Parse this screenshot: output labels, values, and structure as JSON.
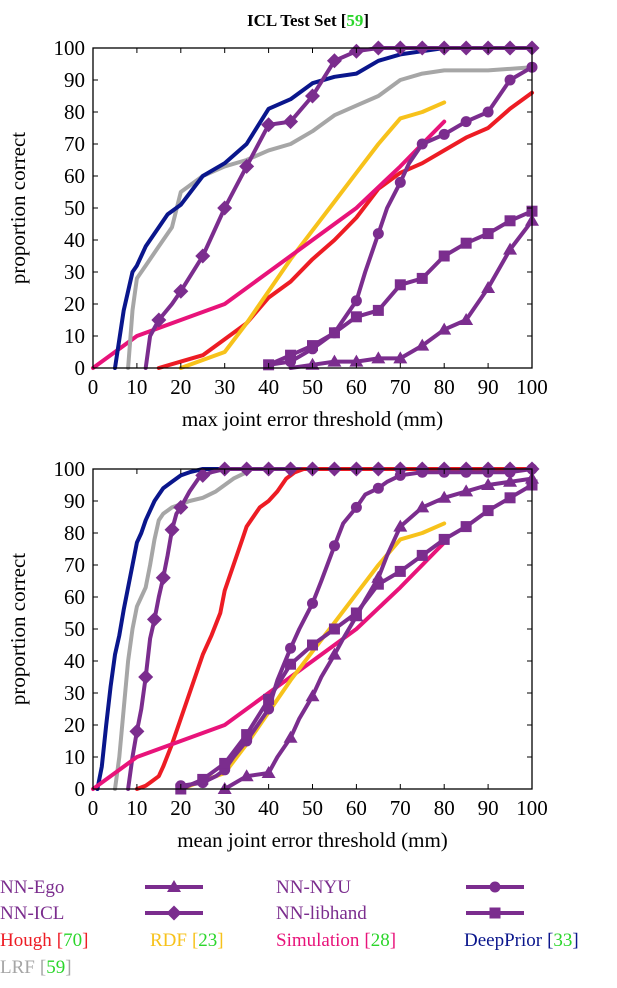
{
  "title": {
    "main": "ICL Test Set",
    "open": "[",
    "ref": "59",
    "close": "]"
  },
  "colors": {
    "NN-Ego": "#7b2d8e",
    "NN-ICL": "#7b2d8e",
    "NN-NYU": "#7b2d8e",
    "NN-libhand": "#7b2d8e",
    "Hough": "#ed1c24",
    "RDF": "#f7c21b",
    "Simulation": "#e8137a",
    "DeepPrior": "#0a168c",
    "LRF": "#a6a6a6",
    "ref": "#2bd62b"
  },
  "legend": [
    {
      "key": "NN-Ego",
      "label": "NN-Ego",
      "marker": "triangle"
    },
    {
      "key": "NN-NYU",
      "label": "NN-NYU",
      "marker": "circle"
    },
    {
      "key": "NN-ICL",
      "label": "NN-ICL",
      "marker": "diamond"
    },
    {
      "key": "NN-libhand",
      "label": "NN-libhand",
      "marker": "square"
    },
    {
      "key": "Hough",
      "label": "Hough",
      "ref": "70"
    },
    {
      "key": "RDF",
      "label": "RDF",
      "ref": "23"
    },
    {
      "key": "Simulation",
      "label": "Simulation",
      "ref": "28"
    },
    {
      "key": "DeepPrior",
      "label": "DeepPrior",
      "ref": "33"
    },
    {
      "key": "LRF",
      "label": "LRF",
      "ref": "59"
    }
  ],
  "chart_data": [
    {
      "type": "line",
      "xlabel": "max joint error threshold (mm)",
      "ylabel": "proportion correct",
      "xlim": [
        0,
        100
      ],
      "ylim": [
        0,
        100
      ],
      "xticks": [
        0,
        10,
        20,
        30,
        40,
        50,
        60,
        70,
        80,
        90,
        100
      ],
      "yticks": [
        0,
        10,
        20,
        30,
        40,
        50,
        60,
        70,
        80,
        90,
        100
      ],
      "series": [
        {
          "key": "Hough",
          "x": [
            15,
            20,
            25,
            30,
            35,
            40,
            45,
            50,
            55,
            60,
            65,
            70,
            75,
            80,
            85,
            90,
            95,
            100
          ],
          "y": [
            0,
            2,
            4,
            9,
            14,
            22,
            27,
            34,
            40,
            47,
            56,
            61,
            64,
            68,
            72,
            75,
            81,
            86
          ]
        },
        {
          "key": "RDF",
          "x": [
            20,
            30,
            35,
            40,
            45,
            50,
            55,
            60,
            65,
            70,
            75,
            80
          ],
          "y": [
            0,
            5,
            14,
            24,
            34,
            43,
            52,
            61,
            70,
            78,
            80,
            83
          ]
        },
        {
          "key": "Simulation",
          "x": [
            0,
            10,
            20,
            30,
            40,
            50,
            60,
            70,
            80
          ],
          "y": [
            0,
            10,
            15,
            20,
            30,
            40,
            50,
            63,
            77
          ]
        },
        {
          "key": "LRF",
          "x": [
            8,
            9,
            10,
            12,
            15,
            18,
            20,
            25,
            30,
            35,
            40,
            45,
            50,
            55,
            60,
            65,
            70,
            75,
            80,
            90,
            100
          ],
          "y": [
            0,
            18,
            28,
            32,
            38,
            44,
            55,
            60,
            63,
            65,
            68,
            70,
            74,
            79,
            82,
            85,
            90,
            92,
            93,
            93,
            94
          ]
        },
        {
          "key": "DeepPrior",
          "x": [
            5,
            7,
            9,
            10,
            12,
            15,
            17,
            20,
            25,
            30,
            35,
            40,
            45,
            50,
            55,
            60,
            65,
            70,
            75,
            80,
            100
          ],
          "y": [
            0,
            18,
            30,
            32,
            38,
            44,
            48,
            51,
            60,
            64,
            70,
            81,
            84,
            89,
            91,
            92,
            96,
            98,
            99,
            100,
            100
          ]
        },
        {
          "key": "NN-ICL",
          "x": [
            12,
            13,
            15,
            18,
            20,
            25,
            30,
            35,
            40,
            45,
            50,
            55,
            60,
            65,
            70,
            75,
            80,
            85,
            90,
            95,
            100
          ],
          "y": [
            0,
            10,
            15,
            20,
            24,
            35,
            50,
            63,
            76,
            77,
            85,
            96,
            99,
            100,
            100,
            100,
            100,
            100,
            100,
            100,
            100
          ]
        },
        {
          "key": "NN-NYU",
          "x": [
            40,
            45,
            50,
            55,
            60,
            62,
            65,
            67,
            70,
            72,
            75,
            80,
            85,
            90,
            95,
            100
          ],
          "y": [
            1,
            2,
            6,
            11,
            21,
            30,
            42,
            50,
            58,
            64,
            70,
            73,
            77,
            80,
            90,
            94
          ]
        },
        {
          "key": "NN-libhand",
          "x": [
            40,
            45,
            50,
            55,
            60,
            65,
            70,
            75,
            80,
            85,
            90,
            95,
            100
          ],
          "y": [
            1,
            4,
            7,
            11,
            16,
            18,
            26,
            28,
            35,
            39,
            42,
            46,
            49
          ]
        },
        {
          "key": "NN-Ego",
          "x": [
            45,
            50,
            55,
            60,
            65,
            70,
            75,
            80,
            85,
            90,
            95,
            100
          ],
          "y": [
            0,
            1,
            2,
            2,
            3,
            3,
            7,
            12,
            15,
            25,
            37,
            46
          ]
        }
      ],
      "markers": {
        "NN-ICL": [
          15,
          20,
          25,
          30,
          35,
          40,
          45,
          50,
          55,
          60,
          65,
          70,
          75,
          80,
          85,
          90,
          95,
          100
        ],
        "NN-NYU": [
          45,
          50,
          55,
          60,
          65,
          70,
          75,
          80,
          85,
          90,
          95,
          100
        ],
        "NN-libhand": [
          40,
          45,
          50,
          55,
          60,
          65,
          70,
          75,
          80,
          85,
          90,
          95,
          100
        ],
        "NN-Ego": [
          50,
          55,
          60,
          65,
          70,
          75,
          80,
          85,
          90,
          95,
          100
        ]
      }
    },
    {
      "type": "line",
      "xlabel": "mean joint error threshold (mm)",
      "ylabel": "proportion correct",
      "xlim": [
        0,
        100
      ],
      "ylim": [
        0,
        100
      ],
      "xticks": [
        0,
        10,
        20,
        30,
        40,
        50,
        60,
        70,
        80,
        90,
        100
      ],
      "yticks": [
        0,
        10,
        20,
        30,
        40,
        50,
        60,
        70,
        80,
        90,
        100
      ],
      "series": [
        {
          "key": "DeepPrior",
          "x": [
            1,
            2,
            3,
            4,
            5,
            6,
            7,
            8,
            9,
            10,
            11,
            12,
            13,
            14,
            15,
            16,
            18,
            20,
            22,
            25,
            30,
            100
          ],
          "y": [
            0,
            7,
            20,
            32,
            42,
            48,
            56,
            63,
            70,
            77,
            80,
            84,
            87,
            90,
            92,
            94,
            96,
            98,
            99,
            100,
            100,
            100
          ]
        },
        {
          "key": "LRF",
          "x": [
            5,
            6,
            7,
            8,
            9,
            10,
            11,
            12,
            13,
            14,
            15,
            16,
            18,
            20,
            22,
            25,
            28,
            30,
            32,
            35
          ],
          "y": [
            0,
            10,
            25,
            40,
            50,
            57,
            60,
            63,
            70,
            78,
            84,
            86,
            88,
            89,
            90,
            91,
            93,
            95,
            97,
            99
          ]
        },
        {
          "key": "NN-ICL",
          "x": [
            8,
            9,
            10,
            11,
            12,
            13,
            14,
            15,
            16,
            17,
            18,
            19,
            20,
            22,
            24,
            25,
            27,
            30,
            100
          ],
          "y": [
            0,
            10,
            18,
            25,
            35,
            47,
            53,
            60,
            66,
            73,
            81,
            86,
            88,
            93,
            97,
            98,
            99,
            100,
            100
          ]
        },
        {
          "key": "Hough",
          "x": [
            10,
            12,
            13,
            15,
            16,
            18,
            20,
            22,
            24,
            25,
            27,
            29,
            30,
            32,
            34,
            35,
            37,
            38,
            40,
            42,
            44,
            45,
            46,
            48,
            50,
            100
          ],
          "y": [
            0,
            1,
            2,
            4,
            7,
            14,
            22,
            30,
            38,
            42,
            48,
            55,
            62,
            70,
            78,
            82,
            86,
            88,
            90,
            93,
            97,
            98,
            99,
            100,
            100,
            100
          ]
        },
        {
          "key": "Simulation",
          "x": [
            0,
            10,
            20,
            30,
            40,
            50,
            60,
            70,
            80
          ],
          "y": [
            0,
            10,
            15,
            20,
            30,
            40,
            50,
            63,
            77
          ]
        },
        {
          "key": "RDF",
          "x": [
            20,
            30,
            35,
            40,
            45,
            50,
            55,
            60,
            65,
            70,
            75,
            80
          ],
          "y": [
            0,
            5,
            14,
            24,
            34,
            43,
            52,
            61,
            70,
            78,
            80,
            83
          ]
        },
        {
          "key": "NN-NYU",
          "x": [
            20,
            25,
            28,
            30,
            32,
            35,
            37,
            40,
            42,
            45,
            47,
            50,
            52,
            55,
            57,
            60,
            62,
            65,
            67,
            70,
            75,
            80,
            85,
            90,
            95,
            100
          ],
          "y": [
            1,
            2,
            4,
            6,
            10,
            15,
            19,
            25,
            34,
            44,
            50,
            58,
            65,
            76,
            83,
            88,
            92,
            94,
            96,
            98,
            99,
            99,
            99,
            99,
            99,
            100
          ]
        },
        {
          "key": "NN-libhand",
          "x": [
            20,
            25,
            30,
            35,
            40,
            45,
            50,
            55,
            60,
            65,
            70,
            75,
            80,
            85,
            90,
            95,
            100
          ],
          "y": [
            0,
            3,
            8,
            17,
            28,
            39,
            45,
            50,
            55,
            64,
            68,
            73,
            78,
            82,
            87,
            91,
            95
          ]
        },
        {
          "key": "NN-Ego",
          "x": [
            30,
            35,
            40,
            42,
            45,
            47,
            50,
            52,
            55,
            57,
            60,
            62,
            65,
            67,
            70,
            75,
            80,
            85,
            90,
            95,
            100
          ],
          "y": [
            0,
            4,
            5,
            10,
            16,
            22,
            29,
            35,
            42,
            47,
            54,
            59,
            66,
            73,
            82,
            88,
            91,
            93,
            95,
            96,
            97
          ]
        }
      ],
      "markers": {
        "NN-ICL": [
          10,
          12,
          14,
          16,
          18,
          20,
          25,
          30,
          35,
          40,
          45,
          50,
          55,
          60,
          65,
          70,
          75,
          80,
          85,
          90,
          95,
          100
        ],
        "NN-NYU": [
          20,
          25,
          30,
          35,
          40,
          45,
          50,
          55,
          60,
          65,
          70,
          75,
          80,
          85,
          90,
          95,
          100
        ],
        "NN-libhand": [
          20,
          25,
          30,
          35,
          40,
          45,
          50,
          55,
          60,
          65,
          70,
          75,
          80,
          85,
          90,
          95,
          100
        ],
        "NN-Ego": [
          30,
          35,
          40,
          45,
          50,
          55,
          60,
          65,
          70,
          75,
          80,
          85,
          90,
          95,
          100
        ]
      }
    }
  ]
}
